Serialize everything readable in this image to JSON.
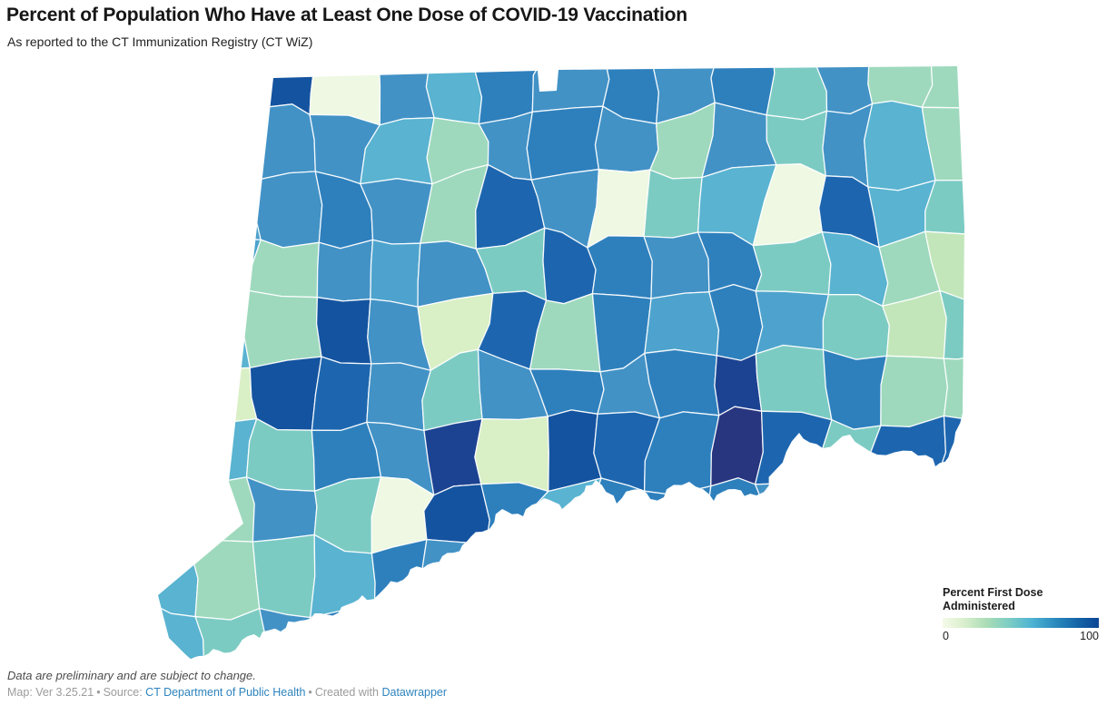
{
  "header": {
    "title": "Percent of Population Who Have at Least One Dose of COVID-19 Vaccination",
    "subtitle": "As reported to the CT Immunization Registry (CT WiZ)"
  },
  "legend": {
    "title_line1": "Percent First Dose",
    "title_line2": "Administered",
    "min_label": "0",
    "max_label": "100",
    "gradient_stops": [
      "#f4fae9",
      "#d8eecb",
      "#a9dcb6",
      "#7bccc4",
      "#4eb3d3",
      "#2b8cbe",
      "#1566a8",
      "#0b4596"
    ]
  },
  "footer": {
    "disclaimer": "Data are preliminary and are subject to change.",
    "map_label": "Map: Ver 3.25.21",
    "sep1": "•",
    "source_prefix": "Source:",
    "source_link": "CT Department of Public Health",
    "sep2": "•",
    "created_prefix": "Created with",
    "created_link": "Datawrapper"
  },
  "map": {
    "background": "#ffffff",
    "border_color": "#ffffff",
    "palette": {
      "CR": "#eef8e2",
      "PG": "#d9efc6",
      "LG": "#c2e6ba",
      "MG": "#9ed9bd",
      "TL": "#7ccbc3",
      "TB": "#59b3d1",
      "LB": "#4da3cd",
      "MB": "#4292c6",
      "BL": "#2e80bd",
      "DB": "#1d66af",
      "D2": "#14539f",
      "NV": "#1c4392",
      "IN": "#28357f"
    },
    "cells": [
      "MB MB D2 CR MB TB BL MB BL MB BL TL MB MG MG",
      "MB MB MB MB TB MG MB BL MB MG MB TL MB TB MG",
      "MB LB MB BL MB MG DB MB CR TL TB CR DB TB TL",
      "MB LB MG MB LB MB TL DB BL MB BL TL TB MG LG",
      "MB TB MG D2 MB PG DB MG BL LB BL LB TL LG TL",
      "MB PG D2 DB MB TL MB BL MB BL NV TL BL MG MG",
      "TB TB TL BL MB NV PG D2 DB BL IN DB TL DB DB",
      "TL MG MB TL CR D2 BL TB BL BL BL MB MB BL BL",
      "TB MG TL TB BL MB BL BL BL BL BL BL BL BL BL",
      "TB TL MB BL BL BL BL BL BL BL BL BL BL BL BL"
    ]
  }
}
